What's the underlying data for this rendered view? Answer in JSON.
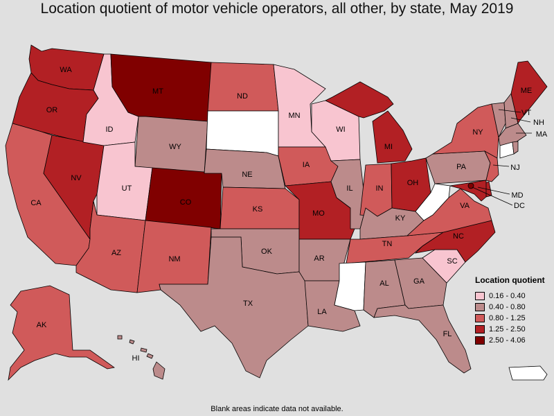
{
  "title": "Location quotient of motor vehicle operators, all other, by state, May 2019",
  "legend": {
    "title": "Location quotient",
    "items": [
      {
        "label": "0.16 - 0.40",
        "color": "#f8c5d0"
      },
      {
        "label": "0.40 - 0.80",
        "color": "#bc8b8b"
      },
      {
        "label": "0.80 - 1.25",
        "color": "#d05a5a"
      },
      {
        "label": "1.25 - 2.50",
        "color": "#b22024"
      },
      {
        "label": "2.50 - 4.06",
        "color": "#800000"
      }
    ]
  },
  "footnote": "Blank areas indicate data not available.",
  "no_data_color": "#ffffff",
  "states": {
    "WA": {
      "label": "WA",
      "bin": 3
    },
    "OR": {
      "label": "OR",
      "bin": 3
    },
    "CA": {
      "label": "CA",
      "bin": 2
    },
    "NV": {
      "label": "NV",
      "bin": 3
    },
    "ID": {
      "label": "ID",
      "bin": 0
    },
    "MT": {
      "label": "MT",
      "bin": 4
    },
    "WY": {
      "label": "WY",
      "bin": 1
    },
    "UT": {
      "label": "UT",
      "bin": 0
    },
    "AZ": {
      "label": "AZ",
      "bin": 2
    },
    "CO": {
      "label": "CO",
      "bin": 4
    },
    "NM": {
      "label": "NM",
      "bin": 2
    },
    "ND": {
      "label": "ND",
      "bin": 2
    },
    "SD": {
      "label": "",
      "bin": null
    },
    "NE": {
      "label": "NE",
      "bin": 1
    },
    "KS": {
      "label": "KS",
      "bin": 2
    },
    "OK": {
      "label": "OK",
      "bin": 1
    },
    "TX": {
      "label": "TX",
      "bin": 1
    },
    "MN": {
      "label": "MN",
      "bin": 0
    },
    "IA": {
      "label": "IA",
      "bin": 2
    },
    "MO": {
      "label": "MO",
      "bin": 3
    },
    "AR": {
      "label": "AR",
      "bin": 1
    },
    "LA": {
      "label": "LA",
      "bin": 1
    },
    "WI": {
      "label": "WI",
      "bin": 0
    },
    "IL": {
      "label": "IL",
      "bin": 1
    },
    "MI": {
      "label": "MI",
      "bin": 3
    },
    "IN": {
      "label": "IN",
      "bin": 2
    },
    "OH": {
      "label": "OH",
      "bin": 3
    },
    "KY": {
      "label": "KY",
      "bin": 1
    },
    "TN": {
      "label": "TN",
      "bin": 2
    },
    "MS": {
      "label": "",
      "bin": null
    },
    "AL": {
      "label": "AL",
      "bin": 1
    },
    "GA": {
      "label": "GA",
      "bin": 1
    },
    "FL": {
      "label": "FL",
      "bin": 1
    },
    "SC": {
      "label": "SC",
      "bin": 0
    },
    "NC": {
      "label": "NC",
      "bin": 3
    },
    "VA": {
      "label": "VA",
      "bin": 2
    },
    "WV": {
      "label": "",
      "bin": null
    },
    "PA": {
      "label": "PA",
      "bin": 1
    },
    "NY": {
      "label": "NY",
      "bin": 2
    },
    "NJ": {
      "label": "NJ",
      "bin": 2
    },
    "DE": {
      "label": "",
      "bin": 3
    },
    "MD": {
      "label": "MD",
      "bin": 3
    },
    "DC": {
      "label": "DC",
      "bin": 4
    },
    "CT": {
      "label": "",
      "bin": null
    },
    "RI": {
      "label": "",
      "bin": 1
    },
    "MA": {
      "label": "MA",
      "bin": 1
    },
    "VT": {
      "label": "VT",
      "bin": 1
    },
    "NH": {
      "label": "NH",
      "bin": 1
    },
    "ME": {
      "label": "ME",
      "bin": 3
    },
    "AK": {
      "label": "AK",
      "bin": 2
    },
    "HI": {
      "label": "HI",
      "bin": 1
    },
    "PR": {
      "label": "",
      "bin": null
    }
  }
}
